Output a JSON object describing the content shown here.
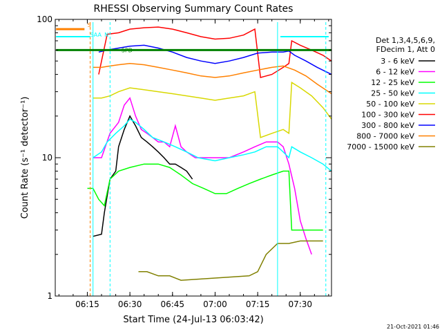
{
  "chart_data": {
    "type": "line",
    "title": "RHESSI Observing Summary Count Rates",
    "xlabel": "Start Time (24-Jul-13 06:03:42)",
    "ylabel": "Count Rate (s⁻¹ detector⁻¹)",
    "yscale": "log",
    "ylim": [
      1,
      100
    ],
    "xlim": [
      "06:03:42",
      "07:41:00"
    ],
    "x_ticks": [
      "06:15",
      "06:30",
      "06:45",
      "07:00",
      "07:15",
      "07:30"
    ],
    "y_ticks": [
      "1",
      "10",
      "100"
    ],
    "legend_header": [
      "Det 1,3,4,5,6,9,",
      "FDecim 1, Att 0"
    ],
    "legend_position": "right",
    "footer_date": "21-Oct-2021 01:46",
    "flag_labels": [
      "S",
      "SAA",
      "N",
      "SPD"
    ],
    "series": [
      {
        "name": "3 - 6 keV",
        "color": "#000000",
        "points": [
          [
            "06:17",
            2.7
          ],
          [
            "06:20",
            2.8
          ],
          [
            "06:21",
            4
          ],
          [
            "06:23",
            7
          ],
          [
            "06:25",
            8
          ],
          [
            "06:26",
            12
          ],
          [
            "06:28",
            16
          ],
          [
            "06:30",
            20
          ],
          [
            "06:32",
            17
          ],
          [
            "06:34",
            14
          ],
          [
            "06:36",
            13
          ],
          [
            "06:38",
            12
          ],
          [
            "06:40",
            11
          ],
          [
            "06:42",
            10
          ],
          [
            "06:44",
            9
          ],
          [
            "06:46",
            9
          ],
          [
            "06:48",
            8.5
          ],
          [
            "06:50",
            8
          ],
          [
            "06:52",
            7
          ]
        ]
      },
      {
        "name": "6 - 12 keV",
        "color": "#ff00ff",
        "points": [
          [
            "06:17",
            10
          ],
          [
            "06:20",
            10
          ],
          [
            "06:23",
            15
          ],
          [
            "06:26",
            18
          ],
          [
            "06:28",
            24
          ],
          [
            "06:30",
            27
          ],
          [
            "06:32",
            20
          ],
          [
            "06:34",
            16
          ],
          [
            "06:36",
            15
          ],
          [
            "06:38",
            14
          ],
          [
            "06:40",
            13
          ],
          [
            "06:42",
            13
          ],
          [
            "06:44",
            12
          ],
          [
            "06:46",
            17
          ],
          [
            "06:48",
            12
          ],
          [
            "06:50",
            11
          ],
          [
            "06:53",
            10
          ],
          [
            "06:56",
            10
          ],
          [
            "07:00",
            10
          ],
          [
            "07:05",
            10
          ],
          [
            "07:10",
            11
          ],
          [
            "07:14",
            12
          ],
          [
            "07:18",
            13
          ],
          [
            "07:22",
            13
          ],
          [
            "07:24",
            12
          ],
          [
            "07:26",
            9
          ],
          [
            "07:28",
            6
          ],
          [
            "07:30",
            3.5
          ],
          [
            "07:32",
            2.6
          ],
          [
            "07:34",
            2
          ]
        ]
      },
      {
        "name": "12 - 25 keV",
        "color": "#00ff00",
        "points": [
          [
            "06:15",
            6
          ],
          [
            "06:17",
            6
          ],
          [
            "06:19",
            5
          ],
          [
            "06:21",
            4.5
          ],
          [
            "06:23",
            7
          ],
          [
            "06:26",
            8
          ],
          [
            "06:30",
            8.5
          ],
          [
            "06:35",
            9
          ],
          [
            "06:40",
            9
          ],
          [
            "06:44",
            8.5
          ],
          [
            "06:48",
            7.5
          ],
          [
            "06:52",
            6.5
          ],
          [
            "06:56",
            6
          ],
          [
            "07:00",
            5.5
          ],
          [
            "07:04",
            5.5
          ],
          [
            "07:08",
            6
          ],
          [
            "07:12",
            6.5
          ],
          [
            "07:16",
            7
          ],
          [
            "07:20",
            7.5
          ],
          [
            "07:24",
            8
          ],
          [
            "07:26",
            8
          ],
          [
            "07:27",
            3
          ],
          [
            "07:30",
            3
          ],
          [
            "07:34",
            3
          ],
          [
            "07:38",
            3
          ]
        ]
      },
      {
        "name": "25 - 50 keV",
        "color": "#00ffff",
        "points": [
          [
            "06:17",
            10
          ],
          [
            "06:20",
            11
          ],
          [
            "06:22",
            13
          ],
          [
            "06:25",
            15
          ],
          [
            "06:28",
            17
          ],
          [
            "06:30",
            19
          ],
          [
            "06:32",
            18
          ],
          [
            "06:35",
            16
          ],
          [
            "06:38",
            14
          ],
          [
            "06:42",
            13
          ],
          [
            "06:46",
            12
          ],
          [
            "06:50",
            11
          ],
          [
            "06:54",
            10
          ],
          [
            "07:00",
            9.5
          ],
          [
            "07:05",
            10
          ],
          [
            "07:10",
            10.5
          ],
          [
            "07:14",
            11
          ],
          [
            "07:18",
            12
          ],
          [
            "07:22",
            12
          ],
          [
            "07:24",
            11
          ],
          [
            "07:26",
            10
          ],
          [
            "07:27",
            12
          ],
          [
            "07:30",
            11
          ],
          [
            "07:34",
            10
          ],
          [
            "07:38",
            9
          ],
          [
            "07:41",
            8
          ]
        ]
      },
      {
        "name": "50 - 100 keV",
        "color": "#d8d800",
        "points": [
          [
            "06:17",
            27
          ],
          [
            "06:20",
            27
          ],
          [
            "06:23",
            28
          ],
          [
            "06:26",
            30
          ],
          [
            "06:30",
            32
          ],
          [
            "06:35",
            31
          ],
          [
            "06:40",
            30
          ],
          [
            "06:45",
            29
          ],
          [
            "06:50",
            28
          ],
          [
            "06:55",
            27
          ],
          [
            "07:00",
            26
          ],
          [
            "07:05",
            27
          ],
          [
            "07:10",
            28
          ],
          [
            "07:14",
            30
          ],
          [
            "07:16",
            14
          ],
          [
            "07:20",
            15
          ],
          [
            "07:24",
            16
          ],
          [
            "07:26",
            15
          ],
          [
            "07:27",
            35
          ],
          [
            "07:30",
            32
          ],
          [
            "07:34",
            28
          ],
          [
            "07:38",
            23
          ],
          [
            "07:41",
            19
          ]
        ]
      },
      {
        "name": "100 - 300 keV",
        "color": "#ff0000",
        "points": [
          [
            "06:19",
            40
          ],
          [
            "06:22",
            78
          ],
          [
            "06:26",
            80
          ],
          [
            "06:30",
            85
          ],
          [
            "06:35",
            87
          ],
          [
            "06:40",
            88
          ],
          [
            "06:45",
            85
          ],
          [
            "06:50",
            80
          ],
          [
            "06:55",
            75
          ],
          [
            "07:00",
            72
          ],
          [
            "07:05",
            73
          ],
          [
            "07:10",
            77
          ],
          [
            "07:14",
            85
          ],
          [
            "07:16",
            38
          ],
          [
            "07:20",
            40
          ],
          [
            "07:24",
            45
          ],
          [
            "07:26",
            48
          ],
          [
            "07:27",
            70
          ],
          [
            "07:30",
            65
          ],
          [
            "07:34",
            60
          ],
          [
            "07:38",
            55
          ],
          [
            "07:41",
            50
          ]
        ]
      },
      {
        "name": "300 - 800 keV",
        "color": "#0000ff",
        "points": [
          [
            "06:19",
            58
          ],
          [
            "06:22",
            60
          ],
          [
            "06:26",
            62
          ],
          [
            "06:30",
            64
          ],
          [
            "06:35",
            65
          ],
          [
            "06:40",
            62
          ],
          [
            "06:45",
            58
          ],
          [
            "06:50",
            53
          ],
          [
            "06:55",
            50
          ],
          [
            "07:00",
            48
          ],
          [
            "07:05",
            50
          ],
          [
            "07:10",
            53
          ],
          [
            "07:15",
            57
          ],
          [
            "07:20",
            58
          ],
          [
            "07:24",
            58
          ],
          [
            "07:26",
            59
          ],
          [
            "07:28",
            55
          ],
          [
            "07:32",
            50
          ],
          [
            "07:36",
            45
          ],
          [
            "07:41",
            40
          ]
        ]
      },
      {
        "name": "800 - 7000 keV",
        "color": "#ff8000",
        "points": [
          [
            "06:17",
            45
          ],
          [
            "06:20",
            45
          ],
          [
            "06:23",
            46
          ],
          [
            "06:26",
            47
          ],
          [
            "06:30",
            48
          ],
          [
            "06:35",
            47
          ],
          [
            "06:40",
            45
          ],
          [
            "06:45",
            43
          ],
          [
            "06:50",
            41
          ],
          [
            "06:55",
            39
          ],
          [
            "07:00",
            38
          ],
          [
            "07:05",
            39
          ],
          [
            "07:10",
            41
          ],
          [
            "07:15",
            43
          ],
          [
            "07:20",
            45
          ],
          [
            "07:24",
            46
          ],
          [
            "07:28",
            43
          ],
          [
            "07:32",
            39
          ],
          [
            "07:36",
            34
          ],
          [
            "07:41",
            29
          ]
        ]
      },
      {
        "name": "7000 - 15000 keV",
        "color": "#808000",
        "points": [
          [
            "06:33",
            1.5
          ],
          [
            "06:36",
            1.5
          ],
          [
            "06:40",
            1.4
          ],
          [
            "06:44",
            1.4
          ],
          [
            "06:48",
            1.3
          ],
          [
            "07:12",
            1.4
          ],
          [
            "07:15",
            1.5
          ],
          [
            "07:18",
            2.0
          ],
          [
            "07:22",
            2.4
          ],
          [
            "07:26",
            2.4
          ],
          [
            "07:30",
            2.5
          ],
          [
            "07:34",
            2.5
          ],
          [
            "07:38",
            2.5
          ]
        ]
      }
    ]
  }
}
